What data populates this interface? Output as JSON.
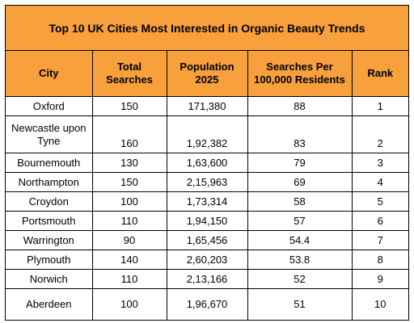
{
  "title": "Top 10 UK Cities Most Interested in Organic Beauty Trends",
  "headers": {
    "city": "City",
    "total_searches": "Total Searches",
    "population": "Population 2025",
    "searches_per": "Searches Per 100,000 Residents",
    "rank": "Rank"
  },
  "rows": [
    {
      "city": "Oxford",
      "total": "150",
      "population": "171,380",
      "per": "88",
      "rank": "1"
    },
    {
      "city": "Newcastle upon Tyne",
      "total": "160",
      "population": "1,92,382",
      "per": "83",
      "rank": "2"
    },
    {
      "city": "Bournemouth",
      "total": "130",
      "population": "1,63,600",
      "per": "79",
      "rank": "3"
    },
    {
      "city": "Northampton",
      "total": "150",
      "population": "2,15,963",
      "per": "69",
      "rank": "4"
    },
    {
      "city": "Croydon",
      "total": "100",
      "population": "1,73,314",
      "per": "58",
      "rank": "5"
    },
    {
      "city": "Portsmouth",
      "total": "110",
      "population": "1,94,150",
      "per": "57",
      "rank": "6"
    },
    {
      "city": "Warrington",
      "total": "90",
      "population": "1,65,456",
      "per": "54.4",
      "rank": "7"
    },
    {
      "city": "Plymouth",
      "total": "140",
      "population": "2,60,203",
      "per": "53.8",
      "rank": "8"
    },
    {
      "city": "Norwich",
      "total": "110",
      "population": "2,13,166",
      "per": "52",
      "rank": "9"
    },
    {
      "city": "Aberdeen",
      "total": "100",
      "population": "1,96,670",
      "per": "51",
      "rank": "10"
    }
  ],
  "colors": {
    "header_fill": "#f7a03c",
    "border": "#000000",
    "background": "#ffffff"
  }
}
